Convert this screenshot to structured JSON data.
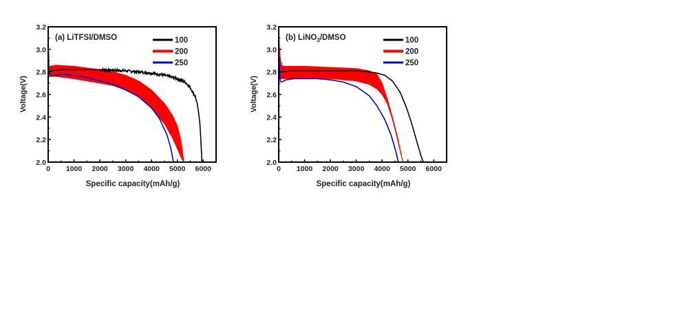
{
  "chart_data": [
    {
      "type": "line",
      "panel_label": "(a) LiTFSI/DMSO",
      "title": "(a) LiTFSI/DMSO",
      "xlabel": "Specific capacity(mAh/g)",
      "ylabel": "Voltage(V)",
      "xlim": [
        0,
        6500
      ],
      "ylim": [
        2.0,
        3.2
      ],
      "xticks": [
        "0",
        "1000",
        "2000",
        "3000",
        "4000",
        "5000",
        "6000"
      ],
      "yticks": [
        "2.0",
        "2.2",
        "2.4",
        "2.6",
        "2.8",
        "3.0",
        "3.2"
      ],
      "legend_position": "top-right",
      "series": [
        {
          "name": "100",
          "color": "#000000",
          "noise": 0.012,
          "x": [
            0,
            30,
            100,
            500,
            1000,
            2000,
            3000,
            4000,
            4500,
            5000,
            5300,
            5500,
            5700,
            5800,
            5870,
            5910,
            5940,
            5950
          ],
          "y": [
            2.78,
            2.8,
            2.81,
            2.82,
            2.82,
            2.82,
            2.81,
            2.79,
            2.77,
            2.74,
            2.71,
            2.66,
            2.58,
            2.48,
            2.35,
            2.2,
            2.06,
            2.0
          ]
        },
        {
          "name": "200",
          "color": "#ff0000",
          "band": true,
          "x": [
            0,
            50,
            300,
            1000,
            2000,
            2500,
            3000,
            3500,
            4000,
            4500,
            4800,
            5000,
            5150,
            5250
          ],
          "y_upper": [
            2.78,
            2.85,
            2.86,
            2.85,
            2.82,
            2.8,
            2.77,
            2.72,
            2.64,
            2.52,
            2.42,
            2.32,
            2.18,
            2.0
          ],
          "y_lower": [
            2.74,
            2.76,
            2.76,
            2.74,
            2.7,
            2.68,
            2.64,
            2.58,
            2.48,
            2.34,
            2.22,
            2.12,
            2.04,
            2.0
          ]
        },
        {
          "name": "250",
          "color": "#0000dd",
          "x": [
            0,
            10,
            30,
            100,
            300,
            600,
            1000,
            1500,
            2000,
            2500,
            3000,
            3500,
            4000,
            4300,
            4600,
            4750,
            4850
          ],
          "y": [
            3.1,
            2.95,
            2.8,
            2.77,
            2.77,
            2.78,
            2.77,
            2.75,
            2.72,
            2.69,
            2.64,
            2.58,
            2.48,
            2.39,
            2.24,
            2.12,
            2.0
          ]
        }
      ]
    },
    {
      "type": "line",
      "panel_label": "(b) LiNO3/DMSO",
      "title_main": "(b) LiNO",
      "title_sub": "3",
      "title_tail": "/DMSO",
      "xlabel": "Specific capacity(mAh/g)",
      "ylabel": "Voltage(V)",
      "xlim": [
        0,
        6500
      ],
      "ylim": [
        2.0,
        3.2
      ],
      "xticks": [
        "0",
        "1000",
        "2000",
        "3000",
        "4000",
        "5000",
        "6000"
      ],
      "yticks": [
        "2.0",
        "2.2",
        "2.4",
        "2.6",
        "2.8",
        "3.0",
        "3.2"
      ],
      "legend_position": "top-right",
      "series": [
        {
          "name": "100",
          "color": "#000000",
          "noise": 0,
          "x": [
            0,
            100,
            500,
            1000,
            2000,
            3000,
            3500,
            3800,
            4100,
            4400,
            4700,
            4950,
            5150,
            5300,
            5400,
            5500,
            5600
          ],
          "y": [
            2.8,
            2.8,
            2.81,
            2.81,
            2.81,
            2.81,
            2.8,
            2.79,
            2.77,
            2.72,
            2.62,
            2.48,
            2.34,
            2.22,
            2.14,
            2.06,
            2.0
          ]
        },
        {
          "name": "200",
          "color": "#ff0000",
          "band": true,
          "x": [
            0,
            30,
            100,
            200,
            500,
            1000,
            2000,
            3000,
            3500,
            3800,
            4000,
            4200,
            4400,
            4600,
            4750,
            4800
          ],
          "y_upper": [
            3.18,
            2.98,
            2.86,
            2.85,
            2.85,
            2.85,
            2.84,
            2.83,
            2.81,
            2.78,
            2.7,
            2.56,
            2.4,
            2.22,
            2.06,
            2.0
          ],
          "y_lower": [
            2.74,
            2.74,
            2.74,
            2.74,
            2.74,
            2.74,
            2.74,
            2.72,
            2.69,
            2.65,
            2.6,
            2.52,
            2.38,
            2.2,
            2.05,
            2.0
          ]
        },
        {
          "name": "250",
          "color": "#0000dd",
          "x": [
            0,
            15,
            50,
            100,
            300,
            600,
            1000,
            1500,
            2000,
            2500,
            3000,
            3500,
            3800,
            4100,
            4350,
            4550,
            4630
          ],
          "y": [
            3.0,
            2.85,
            2.72,
            2.71,
            2.73,
            2.74,
            2.74,
            2.74,
            2.73,
            2.71,
            2.67,
            2.59,
            2.5,
            2.38,
            2.24,
            2.08,
            2.0
          ]
        }
      ]
    }
  ]
}
